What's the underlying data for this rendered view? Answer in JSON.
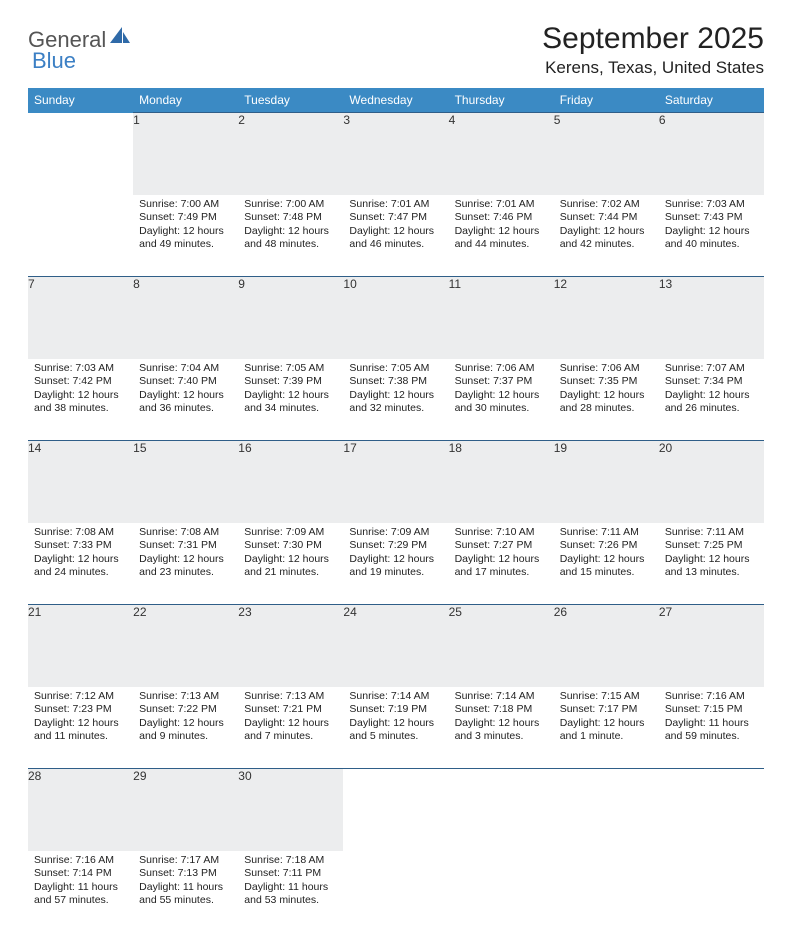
{
  "logo": {
    "word1": "General",
    "word2": "Blue"
  },
  "title": "September 2025",
  "location": "Kerens, Texas, United States",
  "header_bg": "#3b8ac4",
  "header_fg": "#ffffff",
  "daynum_bg": "#ecedee",
  "row_border": "#2f5e88",
  "weekdays": [
    "Sunday",
    "Monday",
    "Tuesday",
    "Wednesday",
    "Thursday",
    "Friday",
    "Saturday"
  ],
  "weeks": [
    [
      null,
      {
        "n": "1",
        "sr": "Sunrise: 7:00 AM",
        "ss": "Sunset: 7:49 PM",
        "dl": "Daylight: 12 hours and 49 minutes."
      },
      {
        "n": "2",
        "sr": "Sunrise: 7:00 AM",
        "ss": "Sunset: 7:48 PM",
        "dl": "Daylight: 12 hours and 48 minutes."
      },
      {
        "n": "3",
        "sr": "Sunrise: 7:01 AM",
        "ss": "Sunset: 7:47 PM",
        "dl": "Daylight: 12 hours and 46 minutes."
      },
      {
        "n": "4",
        "sr": "Sunrise: 7:01 AM",
        "ss": "Sunset: 7:46 PM",
        "dl": "Daylight: 12 hours and 44 minutes."
      },
      {
        "n": "5",
        "sr": "Sunrise: 7:02 AM",
        "ss": "Sunset: 7:44 PM",
        "dl": "Daylight: 12 hours and 42 minutes."
      },
      {
        "n": "6",
        "sr": "Sunrise: 7:03 AM",
        "ss": "Sunset: 7:43 PM",
        "dl": "Daylight: 12 hours and 40 minutes."
      }
    ],
    [
      {
        "n": "7",
        "sr": "Sunrise: 7:03 AM",
        "ss": "Sunset: 7:42 PM",
        "dl": "Daylight: 12 hours and 38 minutes."
      },
      {
        "n": "8",
        "sr": "Sunrise: 7:04 AM",
        "ss": "Sunset: 7:40 PM",
        "dl": "Daylight: 12 hours and 36 minutes."
      },
      {
        "n": "9",
        "sr": "Sunrise: 7:05 AM",
        "ss": "Sunset: 7:39 PM",
        "dl": "Daylight: 12 hours and 34 minutes."
      },
      {
        "n": "10",
        "sr": "Sunrise: 7:05 AM",
        "ss": "Sunset: 7:38 PM",
        "dl": "Daylight: 12 hours and 32 minutes."
      },
      {
        "n": "11",
        "sr": "Sunrise: 7:06 AM",
        "ss": "Sunset: 7:37 PM",
        "dl": "Daylight: 12 hours and 30 minutes."
      },
      {
        "n": "12",
        "sr": "Sunrise: 7:06 AM",
        "ss": "Sunset: 7:35 PM",
        "dl": "Daylight: 12 hours and 28 minutes."
      },
      {
        "n": "13",
        "sr": "Sunrise: 7:07 AM",
        "ss": "Sunset: 7:34 PM",
        "dl": "Daylight: 12 hours and 26 minutes."
      }
    ],
    [
      {
        "n": "14",
        "sr": "Sunrise: 7:08 AM",
        "ss": "Sunset: 7:33 PM",
        "dl": "Daylight: 12 hours and 24 minutes."
      },
      {
        "n": "15",
        "sr": "Sunrise: 7:08 AM",
        "ss": "Sunset: 7:31 PM",
        "dl": "Daylight: 12 hours and 23 minutes."
      },
      {
        "n": "16",
        "sr": "Sunrise: 7:09 AM",
        "ss": "Sunset: 7:30 PM",
        "dl": "Daylight: 12 hours and 21 minutes."
      },
      {
        "n": "17",
        "sr": "Sunrise: 7:09 AM",
        "ss": "Sunset: 7:29 PM",
        "dl": "Daylight: 12 hours and 19 minutes."
      },
      {
        "n": "18",
        "sr": "Sunrise: 7:10 AM",
        "ss": "Sunset: 7:27 PM",
        "dl": "Daylight: 12 hours and 17 minutes."
      },
      {
        "n": "19",
        "sr": "Sunrise: 7:11 AM",
        "ss": "Sunset: 7:26 PM",
        "dl": "Daylight: 12 hours and 15 minutes."
      },
      {
        "n": "20",
        "sr": "Sunrise: 7:11 AM",
        "ss": "Sunset: 7:25 PM",
        "dl": "Daylight: 12 hours and 13 minutes."
      }
    ],
    [
      {
        "n": "21",
        "sr": "Sunrise: 7:12 AM",
        "ss": "Sunset: 7:23 PM",
        "dl": "Daylight: 12 hours and 11 minutes."
      },
      {
        "n": "22",
        "sr": "Sunrise: 7:13 AM",
        "ss": "Sunset: 7:22 PM",
        "dl": "Daylight: 12 hours and 9 minutes."
      },
      {
        "n": "23",
        "sr": "Sunrise: 7:13 AM",
        "ss": "Sunset: 7:21 PM",
        "dl": "Daylight: 12 hours and 7 minutes."
      },
      {
        "n": "24",
        "sr": "Sunrise: 7:14 AM",
        "ss": "Sunset: 7:19 PM",
        "dl": "Daylight: 12 hours and 5 minutes."
      },
      {
        "n": "25",
        "sr": "Sunrise: 7:14 AM",
        "ss": "Sunset: 7:18 PM",
        "dl": "Daylight: 12 hours and 3 minutes."
      },
      {
        "n": "26",
        "sr": "Sunrise: 7:15 AM",
        "ss": "Sunset: 7:17 PM",
        "dl": "Daylight: 12 hours and 1 minute."
      },
      {
        "n": "27",
        "sr": "Sunrise: 7:16 AM",
        "ss": "Sunset: 7:15 PM",
        "dl": "Daylight: 11 hours and 59 minutes."
      }
    ],
    [
      {
        "n": "28",
        "sr": "Sunrise: 7:16 AM",
        "ss": "Sunset: 7:14 PM",
        "dl": "Daylight: 11 hours and 57 minutes."
      },
      {
        "n": "29",
        "sr": "Sunrise: 7:17 AM",
        "ss": "Sunset: 7:13 PM",
        "dl": "Daylight: 11 hours and 55 minutes."
      },
      {
        "n": "30",
        "sr": "Sunrise: 7:18 AM",
        "ss": "Sunset: 7:11 PM",
        "dl": "Daylight: 11 hours and 53 minutes."
      },
      null,
      null,
      null,
      null
    ]
  ]
}
